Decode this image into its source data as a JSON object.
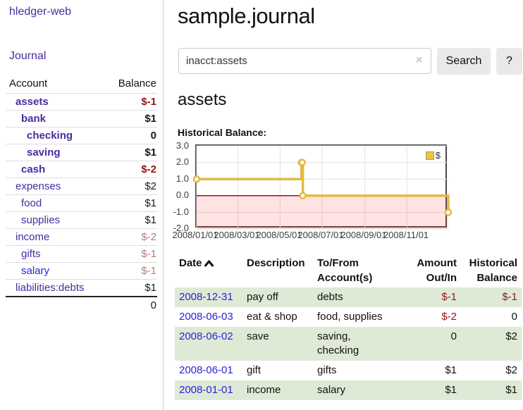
{
  "sidebar": {
    "app_title": "hledger-web",
    "nav": {
      "journal": "Journal"
    },
    "accounts_table": {
      "headers": {
        "account": "Account",
        "balance": "Balance"
      },
      "rows": [
        {
          "account": "assets",
          "balance": "$-1"
        },
        {
          "account": "bank",
          "balance": "$1"
        },
        {
          "account": "checking",
          "balance": "0"
        },
        {
          "account": "saving",
          "balance": "$1"
        },
        {
          "account": "cash",
          "balance": "$-2"
        },
        {
          "account": "expenses",
          "balance": "$2"
        },
        {
          "account": "food",
          "balance": "$1"
        },
        {
          "account": "supplies",
          "balance": "$1"
        },
        {
          "account": "income",
          "balance": "$-2"
        },
        {
          "account": "gifts",
          "balance": "$-1"
        },
        {
          "account": "salary",
          "balance": "$-1"
        },
        {
          "account": "liabilities:debts",
          "balance": "$1"
        }
      ],
      "total": "0"
    }
  },
  "header": {
    "title": "sample.journal"
  },
  "search": {
    "query": "inacct:assets",
    "clear_label": "×",
    "button_label": "Search",
    "help_label": "?"
  },
  "register": {
    "account_heading": "assets",
    "chart_title": "Historical Balance:"
  },
  "chart_data": {
    "type": "line",
    "step": true,
    "title": "Historical Balance:",
    "series": [
      {
        "name": "$",
        "color": "#e3ba3f",
        "points": [
          [
            "2008-01-01",
            1
          ],
          [
            "2008-06-01",
            2
          ],
          [
            "2008-06-02",
            2
          ],
          [
            "2008-06-03",
            0
          ],
          [
            "2008-12-31",
            -1
          ]
        ]
      }
    ],
    "x_range": [
      "2008-01-01",
      "2008-12-31"
    ],
    "ylim": [
      -2,
      3
    ],
    "y_ticks": [
      "3.0",
      "2.0",
      "1.0",
      "0.0",
      "-1.0",
      "-2.0"
    ],
    "x_ticks": [
      "2008/01/01",
      "2008/03/01",
      "2008/05/01",
      "2008/07/01",
      "2008/09/01",
      "2008/11/01"
    ],
    "grid": true,
    "legend_position": "top-right",
    "zero_line_color": "#8c1717",
    "negative_region_color": "rgba(255,80,80,0.16)"
  },
  "register_table": {
    "headers": {
      "date": "Date",
      "description": "Description",
      "tofrom": "To/From Account(s)",
      "amount": "Amount Out/In",
      "balance": "Historical Balance"
    },
    "rows": [
      {
        "date": "2008-12-31",
        "description": "pay off",
        "accounts": "debts",
        "amount": "$-1",
        "balance": "$-1"
      },
      {
        "date": "2008-06-03",
        "description": "eat & shop",
        "accounts": "food, supplies",
        "amount": "$-2",
        "balance": "0"
      },
      {
        "date": "2008-06-02",
        "description": "save",
        "accounts": "saving,\nchecking",
        "amount": "0",
        "balance": "$2"
      },
      {
        "date": "2008-06-01",
        "description": "gift",
        "accounts": "gifts",
        "amount": "$1",
        "balance": "$2"
      },
      {
        "date": "2008-01-01",
        "description": "income",
        "accounts": "salary",
        "amount": "$1",
        "balance": "$1"
      }
    ]
  }
}
